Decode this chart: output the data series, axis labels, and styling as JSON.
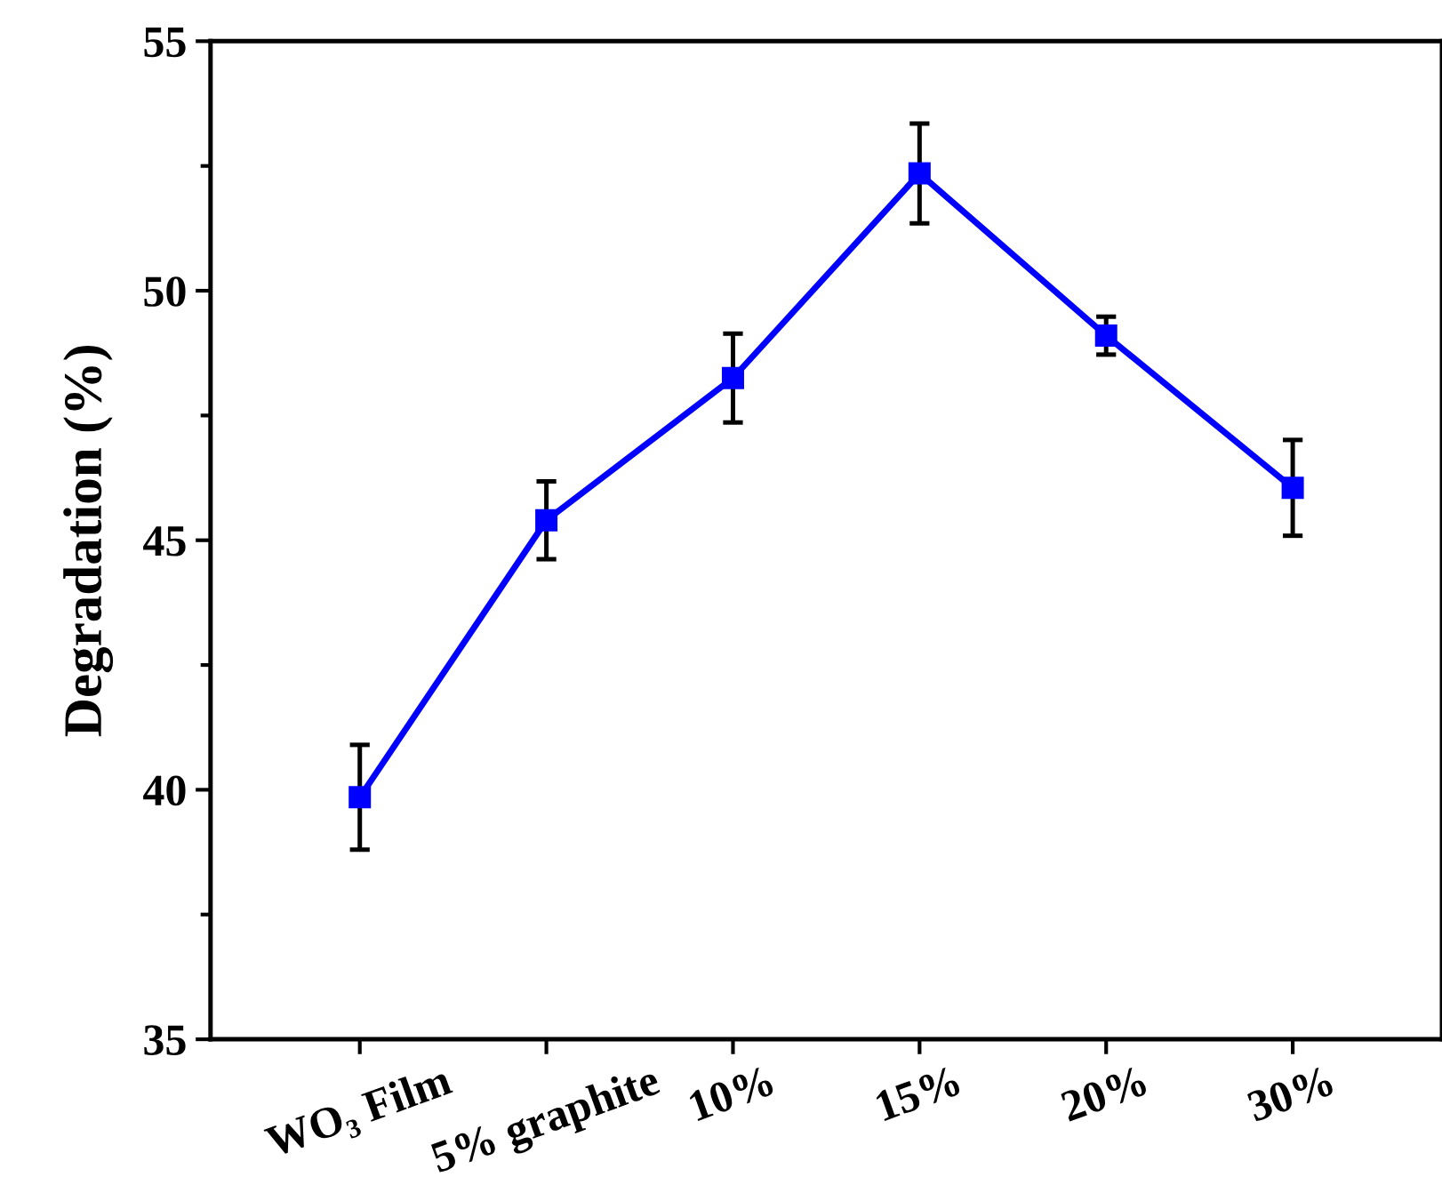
{
  "chart_data": {
    "type": "line",
    "ylabel": "Degradation (%)",
    "categories": [
      "WO₃ Film",
      "5% graphite",
      "10%",
      "15%",
      "20%",
      "30%"
    ],
    "series": [
      {
        "color": "#0000ff",
        "values": [
          39.85,
          45.4,
          48.25,
          52.35,
          49.1,
          46.05
        ],
        "errors": [
          1.05,
          0.78,
          0.89,
          1.0,
          0.38,
          0.96
        ]
      }
    ],
    "ylim": [
      35,
      55
    ],
    "yticks": [
      35,
      40,
      45,
      50,
      55
    ],
    "marker": "square",
    "line_style": "solid",
    "grid": false,
    "legend": false
  }
}
